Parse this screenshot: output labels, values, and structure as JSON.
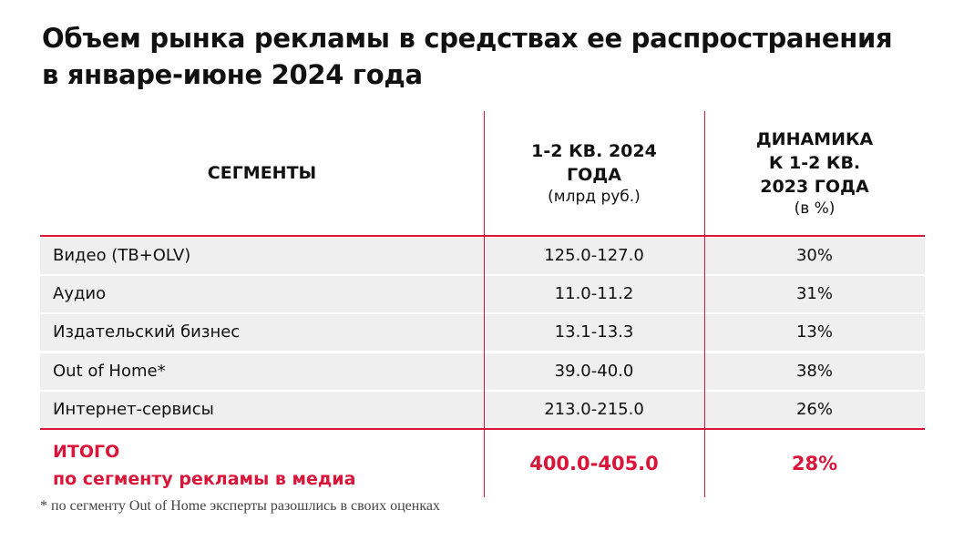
{
  "title_line1": "Объем рынка рекламы в средствах ее распространения",
  "title_line2": "в январе-июне 2024 года",
  "colors": {
    "accent": "#d9163a",
    "row_bg": "#efefef"
  },
  "chart_data": {
    "type": "table",
    "columns": [
      {
        "title": "СЕГМЕНТЫ"
      },
      {
        "title_lines": [
          "1-2 КВ. 2024",
          "ГОДА"
        ],
        "unit": "(млрд руб.)"
      },
      {
        "title_lines": [
          "ДИНАМИКА",
          "К 1-2 КВ.",
          "2023 ГОДА"
        ],
        "unit": "(в %)"
      }
    ],
    "rows": [
      {
        "segment": "Видео (ТВ+OLV)",
        "volume": "125.0-127.0",
        "change": "30%"
      },
      {
        "segment": "Аудио",
        "volume": "11.0-11.2",
        "change": "31%"
      },
      {
        "segment": "Издательский бизнес",
        "volume": "13.1-13.3",
        "change": "13%"
      },
      {
        "segment": "Out of Home*",
        "volume": "39.0-40.0",
        "change": "38%"
      },
      {
        "segment": "Интернет-сервисы",
        "volume": "213.0-215.0",
        "change": "26%"
      }
    ],
    "total": {
      "label_line1": "ИТОГО",
      "label_line2": "по сегменту рекламы в медиа",
      "volume": "400.0-405.0",
      "change": "28%"
    }
  },
  "footnote": "* по сегменту Out of Home эксперты разошлись в своих оценках"
}
